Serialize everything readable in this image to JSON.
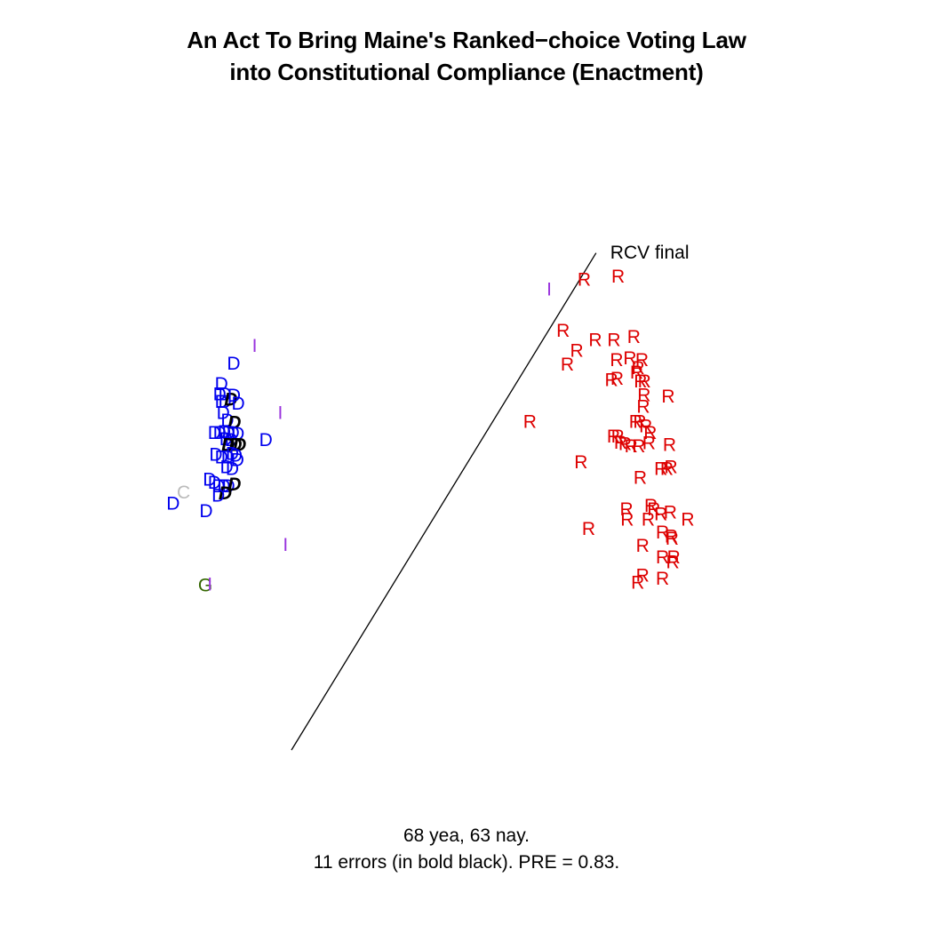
{
  "title": {
    "line1": "An Act To Bring Maine's Ranked−choice Voting Law",
    "line2": "into Constitutional Compliance (Enactment)"
  },
  "caption": {
    "line1": "68 yea, 63 nay.",
    "line2": "11 errors (in bold black). PRE = 0.83."
  },
  "chart_data": {
    "type": "scatter",
    "title": "An Act To Bring Maine's Ranked−choice Voting Law into Constitutional Compliance (Enactment)",
    "xlim": [
      -1,
      1
    ],
    "ylim": [
      -1,
      1
    ],
    "grid": false,
    "legend": "none",
    "colors": {
      "D": "#0000ee",
      "R": "#dd0000",
      "I": "#9933dd",
      "G": "#336600",
      "C": "#bbbbbb",
      "error": "#000000"
    },
    "cutting_line": {
      "label": "RCV final",
      "x": [
        -0.5,
        0.37
      ],
      "y": [
        -0.81,
        0.61
      ]
    },
    "points": [
      {
        "label": "D",
        "x": -0.665,
        "y": 0.291,
        "error": false
      },
      {
        "label": "I",
        "x": -0.605,
        "y": 0.342,
        "error": false
      },
      {
        "label": "D",
        "x": -0.7,
        "y": 0.232,
        "error": false
      },
      {
        "label": "D",
        "x": -0.705,
        "y": 0.203,
        "error": false
      },
      {
        "label": "D",
        "x": -0.69,
        "y": 0.203,
        "error": false
      },
      {
        "label": "D",
        "x": -0.7,
        "y": 0.181,
        "error": false
      },
      {
        "label": "D",
        "x": -0.69,
        "y": 0.181,
        "error": false
      },
      {
        "label": "D",
        "x": -0.673,
        "y": 0.188,
        "error": true
      },
      {
        "label": "D",
        "x": -0.664,
        "y": 0.199,
        "error": false
      },
      {
        "label": "D",
        "x": -0.652,
        "y": 0.177,
        "error": false
      },
      {
        "label": "D",
        "x": -0.695,
        "y": 0.15,
        "error": false
      },
      {
        "label": "D",
        "x": -0.683,
        "y": 0.128,
        "error": false
      },
      {
        "label": "D",
        "x": -0.663,
        "y": 0.122,
        "error": true
      },
      {
        "label": "I",
        "x": -0.532,
        "y": 0.15,
        "error": false
      },
      {
        "label": "D",
        "x": -0.72,
        "y": 0.093,
        "error": false
      },
      {
        "label": "D",
        "x": -0.705,
        "y": 0.093,
        "error": false
      },
      {
        "label": "D",
        "x": -0.692,
        "y": 0.095,
        "error": false
      },
      {
        "label": "D",
        "x": -0.68,
        "y": 0.093,
        "error": false
      },
      {
        "label": "D",
        "x": -0.667,
        "y": 0.093,
        "error": false
      },
      {
        "label": "D",
        "x": -0.653,
        "y": 0.09,
        "error": false
      },
      {
        "label": "D",
        "x": -0.687,
        "y": 0.075,
        "error": false
      },
      {
        "label": "D",
        "x": -0.672,
        "y": 0.072,
        "error": false
      },
      {
        "label": "D",
        "x": -0.681,
        "y": 0.058,
        "error": true
      },
      {
        "label": "D",
        "x": -0.66,
        "y": 0.058,
        "error": true
      },
      {
        "label": "D",
        "x": -0.648,
        "y": 0.058,
        "error": true
      },
      {
        "label": "D",
        "x": -0.573,
        "y": 0.072,
        "error": false
      },
      {
        "label": "D",
        "x": -0.716,
        "y": 0.03,
        "error": false
      },
      {
        "label": "D",
        "x": -0.7,
        "y": 0.023,
        "error": false
      },
      {
        "label": "D",
        "x": -0.682,
        "y": 0.023,
        "error": false
      },
      {
        "label": "D",
        "x": -0.669,
        "y": 0.033,
        "error": false
      },
      {
        "label": "D",
        "x": -0.659,
        "y": 0.028,
        "error": false
      },
      {
        "label": "D",
        "x": -0.654,
        "y": 0.015,
        "error": false
      },
      {
        "label": "D",
        "x": -0.685,
        "y": -0.005,
        "error": false
      },
      {
        "label": "D",
        "x": -0.669,
        "y": -0.01,
        "error": false
      },
      {
        "label": "D",
        "x": -0.734,
        "y": -0.04,
        "error": false
      },
      {
        "label": "D",
        "x": -0.72,
        "y": -0.05,
        "error": false
      },
      {
        "label": "D",
        "x": -0.708,
        "y": -0.06,
        "error": false
      },
      {
        "label": "D",
        "x": -0.693,
        "y": -0.06,
        "error": false
      },
      {
        "label": "D",
        "x": -0.68,
        "y": -0.06,
        "error": false
      },
      {
        "label": "D",
        "x": -0.663,
        "y": -0.055,
        "error": true
      },
      {
        "label": "D",
        "x": -0.689,
        "y": -0.08,
        "error": true
      },
      {
        "label": "D",
        "x": -0.709,
        "y": -0.086,
        "error": false
      },
      {
        "label": "C",
        "x": -0.808,
        "y": -0.078,
        "error": false
      },
      {
        "label": "D",
        "x": -0.838,
        "y": -0.109,
        "error": false
      },
      {
        "label": "D",
        "x": -0.744,
        "y": -0.131,
        "error": false
      },
      {
        "label": "I",
        "x": -0.517,
        "y": -0.227,
        "error": false
      },
      {
        "label": "G",
        "x": -0.746,
        "y": -0.343,
        "error": false
      },
      {
        "label": "I",
        "x": -0.733,
        "y": -0.34,
        "error": false
      },
      {
        "label": "I",
        "x": 0.236,
        "y": 0.503,
        "error": false
      },
      {
        "label": "R",
        "x": 0.336,
        "y": 0.531,
        "error": false
      },
      {
        "label": "R",
        "x": 0.433,
        "y": 0.539,
        "error": false
      },
      {
        "label": "R",
        "x": 0.276,
        "y": 0.384,
        "error": false
      },
      {
        "label": "R",
        "x": 0.315,
        "y": 0.327,
        "error": false
      },
      {
        "label": "R",
        "x": 0.368,
        "y": 0.358,
        "error": false
      },
      {
        "label": "R",
        "x": 0.421,
        "y": 0.358,
        "error": false
      },
      {
        "label": "R",
        "x": 0.478,
        "y": 0.367,
        "error": false
      },
      {
        "label": "R",
        "x": 0.288,
        "y": 0.288,
        "error": false
      },
      {
        "label": "R",
        "x": 0.429,
        "y": 0.301,
        "error": false
      },
      {
        "label": "R",
        "x": 0.467,
        "y": 0.306,
        "error": false
      },
      {
        "label": "R",
        "x": 0.501,
        "y": 0.301,
        "error": false
      },
      {
        "label": "R",
        "x": 0.49,
        "y": 0.278,
        "error": false
      },
      {
        "label": "R",
        "x": 0.486,
        "y": 0.265,
        "error": false
      },
      {
        "label": "R",
        "x": 0.414,
        "y": 0.244,
        "error": false
      },
      {
        "label": "R",
        "x": 0.43,
        "y": 0.248,
        "error": false
      },
      {
        "label": "R",
        "x": 0.497,
        "y": 0.24,
        "error": false
      },
      {
        "label": "R",
        "x": 0.508,
        "y": 0.24,
        "error": false
      },
      {
        "label": "R",
        "x": 0.507,
        "y": 0.2,
        "error": false
      },
      {
        "label": "R",
        "x": 0.576,
        "y": 0.197,
        "error": false
      },
      {
        "label": "R",
        "x": 0.505,
        "y": 0.168,
        "error": false
      },
      {
        "label": "R",
        "x": 0.181,
        "y": 0.124,
        "error": false
      },
      {
        "label": "R",
        "x": 0.483,
        "y": 0.124,
        "error": false
      },
      {
        "label": "R",
        "x": 0.495,
        "y": 0.124,
        "error": false
      },
      {
        "label": "R",
        "x": 0.512,
        "y": 0.112,
        "error": false
      },
      {
        "label": "R",
        "x": 0.525,
        "y": 0.093,
        "error": false
      },
      {
        "label": "R",
        "x": 0.42,
        "y": 0.082,
        "error": false
      },
      {
        "label": "R",
        "x": 0.432,
        "y": 0.082,
        "error": false
      },
      {
        "label": "R",
        "x": 0.44,
        "y": 0.065,
        "error": false
      },
      {
        "label": "R",
        "x": 0.453,
        "y": 0.061,
        "error": false
      },
      {
        "label": "R",
        "x": 0.47,
        "y": 0.055,
        "error": false
      },
      {
        "label": "R",
        "x": 0.492,
        "y": 0.055,
        "error": false
      },
      {
        "label": "R",
        "x": 0.521,
        "y": 0.064,
        "error": false
      },
      {
        "label": "R",
        "x": 0.58,
        "y": 0.058,
        "error": false
      },
      {
        "label": "R",
        "x": 0.327,
        "y": 0.009,
        "error": false
      },
      {
        "label": "R",
        "x": 0.555,
        "y": -0.01,
        "error": false
      },
      {
        "label": "R",
        "x": 0.572,
        "y": -0.01,
        "error": false
      },
      {
        "label": "R",
        "x": 0.584,
        "y": -0.005,
        "error": false
      },
      {
        "label": "R",
        "x": 0.496,
        "y": -0.035,
        "error": false
      },
      {
        "label": "R",
        "x": 0.457,
        "y": -0.126,
        "error": false
      },
      {
        "label": "R",
        "x": 0.527,
        "y": -0.116,
        "error": false
      },
      {
        "label": "R",
        "x": 0.535,
        "y": -0.126,
        "error": false
      },
      {
        "label": "R",
        "x": 0.555,
        "y": -0.14,
        "error": false
      },
      {
        "label": "R",
        "x": 0.582,
        "y": -0.135,
        "error": false
      },
      {
        "label": "R",
        "x": 0.632,
        "y": -0.155,
        "error": false
      },
      {
        "label": "R",
        "x": 0.459,
        "y": -0.155,
        "error": false
      },
      {
        "label": "R",
        "x": 0.519,
        "y": -0.155,
        "error": false
      },
      {
        "label": "R",
        "x": 0.349,
        "y": -0.181,
        "error": false
      },
      {
        "label": "R",
        "x": 0.56,
        "y": -0.191,
        "error": false
      },
      {
        "label": "R",
        "x": 0.585,
        "y": -0.203,
        "error": false
      },
      {
        "label": "R",
        "x": 0.587,
        "y": -0.21,
        "error": false
      },
      {
        "label": "R",
        "x": 0.503,
        "y": -0.23,
        "error": false
      },
      {
        "label": "R",
        "x": 0.56,
        "y": -0.263,
        "error": false
      },
      {
        "label": "R",
        "x": 0.592,
        "y": -0.263,
        "error": false
      },
      {
        "label": "R",
        "x": 0.589,
        "y": -0.277,
        "error": false
      },
      {
        "label": "R",
        "x": 0.503,
        "y": -0.315,
        "error": false
      },
      {
        "label": "R",
        "x": 0.489,
        "y": -0.335,
        "error": false
      },
      {
        "label": "R",
        "x": 0.56,
        "y": -0.323,
        "error": false
      }
    ]
  }
}
